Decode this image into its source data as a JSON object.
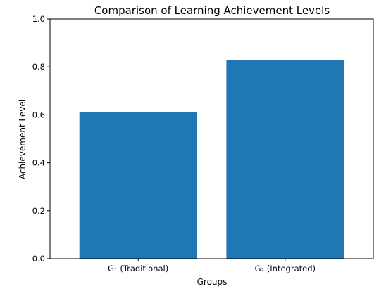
{
  "chart_data": {
    "type": "bar",
    "title": "Comparison of Learning Achievement Levels",
    "xlabel": "Groups",
    "ylabel": "Achievement Level",
    "categories": [
      "G₁ (Traditional)",
      "G₂ (Integrated)"
    ],
    "values": [
      0.61,
      0.83
    ],
    "ylim": [
      0,
      1.0
    ],
    "yticks": [
      "0.0",
      "0.2",
      "0.4",
      "0.6",
      "0.8",
      "1.0"
    ],
    "grid": false,
    "bar_color": "#1f77b4"
  }
}
